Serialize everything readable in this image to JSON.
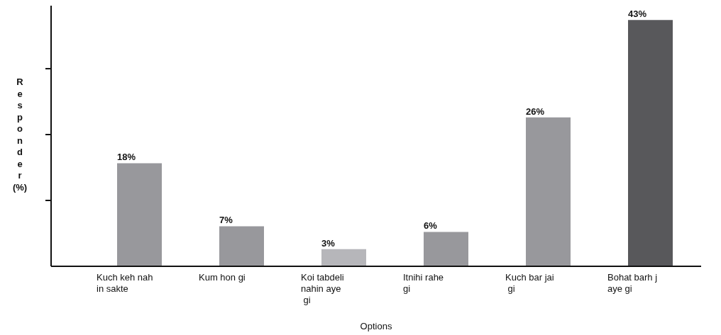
{
  "chart_data": {
    "type": "bar",
    "xlabel": "Options",
    "ylabel": "Responder (%)",
    "categories": [
      "Kuch keh nah\nin sakte",
      "Kum hon gi",
      "Koi tabdeli\nnahin aye\n gi",
      "Itnihi rahe\ngi",
      "Kuch bar jai\n gi",
      "Bohat barh j\naye gi"
    ],
    "values": [
      18,
      7,
      3,
      6,
      26,
      43
    ],
    "colors": [
      "#98989c",
      "#98989c",
      "#b6b6ba",
      "#98989c",
      "#98989c",
      "#58585b"
    ],
    "value_labels": [
      "18%",
      "7%",
      "3%",
      "6%",
      "26%",
      "43%"
    ],
    "ylim": [
      0,
      45.5
    ],
    "yticks": [
      {
        "value": 11.5,
        "label": null
      },
      {
        "value": 23,
        "label": null
      },
      {
        "value": 34.5,
        "label": null
      }
    ],
    "grid": false
  }
}
